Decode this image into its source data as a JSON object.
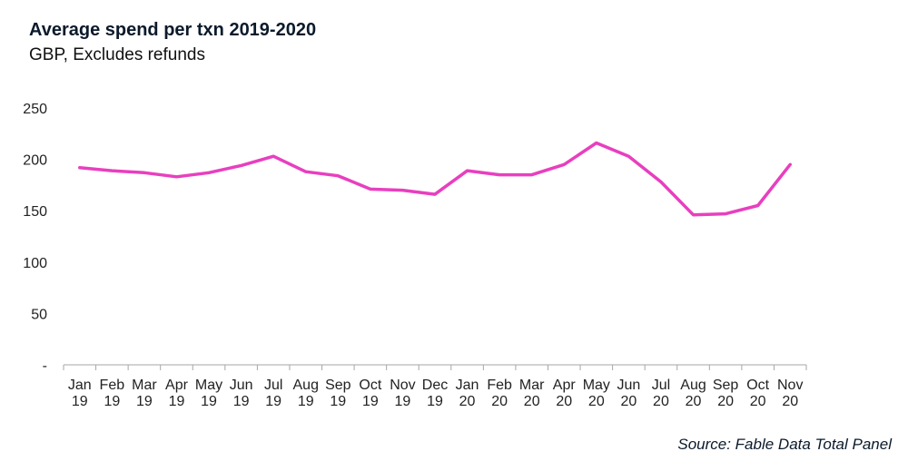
{
  "title": "Average spend per txn 2019-2020",
  "subtitle": "GBP, Excludes refunds",
  "source": "Source: Fable Data Total Panel",
  "chart_data": {
    "type": "line",
    "title": "Average spend per txn 2019-2020",
    "subtitle": "GBP, Excludes refunds",
    "xlabel": "",
    "ylabel": "",
    "categories": [
      [
        "Jan",
        "19"
      ],
      [
        "Feb",
        "19"
      ],
      [
        "Mar",
        "19"
      ],
      [
        "Apr",
        "19"
      ],
      [
        "May",
        "19"
      ],
      [
        "Jun",
        "19"
      ],
      [
        "Jul",
        "19"
      ],
      [
        "Aug",
        "19"
      ],
      [
        "Sep",
        "19"
      ],
      [
        "Oct",
        "19"
      ],
      [
        "Nov",
        "19"
      ],
      [
        "Dec",
        "19"
      ],
      [
        "Jan",
        "20"
      ],
      [
        "Feb",
        "20"
      ],
      [
        "Mar",
        "20"
      ],
      [
        "Apr",
        "20"
      ],
      [
        "May",
        "20"
      ],
      [
        "Jun",
        "20"
      ],
      [
        "Jul",
        "20"
      ],
      [
        "Aug",
        "20"
      ],
      [
        "Sep",
        "20"
      ],
      [
        "Oct",
        "20"
      ],
      [
        "Nov",
        "20"
      ]
    ],
    "series": [
      {
        "color": "#e83fbf",
        "values": [
          192,
          189,
          187,
          183,
          187,
          194,
          203,
          188,
          184,
          171,
          170,
          166,
          189,
          185,
          185,
          195,
          216,
          203,
          178,
          146,
          147,
          155,
          195
        ]
      }
    ],
    "ylim": [
      0,
      250
    ],
    "yticks": [
      {
        "value": 0,
        "label": "-"
      },
      {
        "value": 50,
        "label": "50"
      },
      {
        "value": 100,
        "label": "100"
      },
      {
        "value": 150,
        "label": "150"
      },
      {
        "value": 200,
        "label": "200"
      },
      {
        "value": 250,
        "label": "250"
      }
    ],
    "grid": false,
    "legend": "none"
  }
}
